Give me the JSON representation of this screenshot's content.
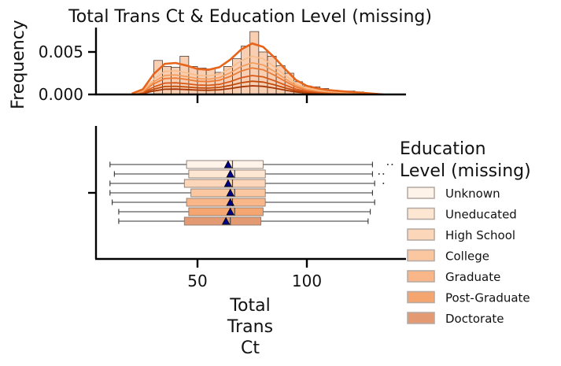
{
  "chart_data": {
    "type": "histogram-kde + boxplot",
    "title": "Total Trans Ct & Education Level (missing)",
    "top_panel": {
      "ylabel": "Frequency",
      "yticks": [
        "0.000",
        "0.005"
      ],
      "ytick_values": [
        0.0,
        0.005
      ],
      "ylim": [
        0,
        0.0075
      ],
      "xlim": [
        0,
        140
      ],
      "bins": [
        {
          "x0": 30,
          "x1": 34,
          "density": 0.004
        },
        {
          "x0": 34,
          "x1": 38,
          "density": 0.0033
        },
        {
          "x0": 38,
          "x1": 42,
          "density": 0.0032
        },
        {
          "x0": 42,
          "x1": 46,
          "density": 0.0045
        },
        {
          "x0": 46,
          "x1": 50,
          "density": 0.0033
        },
        {
          "x0": 50,
          "x1": 54,
          "density": 0.0031
        },
        {
          "x0": 54,
          "x1": 58,
          "density": 0.003
        },
        {
          "x0": 58,
          "x1": 62,
          "density": 0.0026
        },
        {
          "x0": 62,
          "x1": 66,
          "density": 0.0033
        },
        {
          "x0": 66,
          "x1": 70,
          "density": 0.0042
        },
        {
          "x0": 70,
          "x1": 74,
          "density": 0.0057
        },
        {
          "x0": 74,
          "x1": 78,
          "density": 0.0074
        },
        {
          "x0": 78,
          "x1": 82,
          "density": 0.005
        },
        {
          "x0": 82,
          "x1": 86,
          "density": 0.0045
        },
        {
          "x0": 86,
          "x1": 90,
          "density": 0.0034
        },
        {
          "x0": 90,
          "x1": 94,
          "density": 0.0025
        },
        {
          "x0": 94,
          "x1": 98,
          "density": 0.0015
        },
        {
          "x0": 98,
          "x1": 102,
          "density": 0.001
        },
        {
          "x0": 102,
          "x1": 106,
          "density": 0.0009
        },
        {
          "x0": 106,
          "x1": 110,
          "density": 0.0007
        },
        {
          "x0": 110,
          "x1": 114,
          "density": 0.0005
        },
        {
          "x0": 114,
          "x1": 118,
          "density": 0.0004
        },
        {
          "x0": 118,
          "x1": 122,
          "density": 0.0004
        },
        {
          "x0": 122,
          "x1": 126,
          "density": 0.0003
        }
      ],
      "kde_total": [
        [
          20,
          0.0001
        ],
        [
          25,
          0.0006
        ],
        [
          30,
          0.0024
        ],
        [
          35,
          0.0036
        ],
        [
          40,
          0.0037
        ],
        [
          45,
          0.0034
        ],
        [
          50,
          0.003
        ],
        [
          55,
          0.0029
        ],
        [
          60,
          0.0032
        ],
        [
          65,
          0.0041
        ],
        [
          70,
          0.0053
        ],
        [
          75,
          0.006
        ],
        [
          80,
          0.0056
        ],
        [
          85,
          0.0044
        ],
        [
          90,
          0.003
        ],
        [
          95,
          0.0017
        ],
        [
          100,
          0.001
        ],
        [
          105,
          0.0007
        ],
        [
          110,
          0.0005
        ],
        [
          115,
          0.0004
        ],
        [
          120,
          0.0003
        ],
        [
          125,
          0.0002
        ],
        [
          130,
          0.0001
        ],
        [
          135,
          0.0
        ]
      ],
      "kde_group_scales": [
        0.17,
        0.26,
        0.37,
        0.52,
        0.62,
        0.75
      ]
    },
    "bottom_panel": {
      "xlabel": "Total Trans Ct",
      "xticks": [
        "50",
        "100"
      ],
      "xtick_values": [
        50,
        100
      ],
      "xlim": [
        0,
        140
      ],
      "boxes": [
        {
          "name": "Unknown",
          "whisker_low": 10,
          "q1": 45,
          "median": 66,
          "q3": 80,
          "whisker_high": 130,
          "mean": 64,
          "outliers": [
            137,
            139
          ]
        },
        {
          "name": "Uneducated",
          "whisker_low": 12,
          "q1": 46,
          "median": 67,
          "q3": 81,
          "whisker_high": 130,
          "mean": 65,
          "outliers": [
            133,
            135
          ]
        },
        {
          "name": "High School",
          "whisker_low": 10,
          "q1": 44,
          "median": 66,
          "q3": 81,
          "whisker_high": 131,
          "mean": 64,
          "outliers": [
            135
          ]
        },
        {
          "name": "College",
          "whisker_low": 10,
          "q1": 47,
          "median": 67,
          "q3": 81,
          "whisker_high": 130,
          "mean": 65,
          "outliers": []
        },
        {
          "name": "Graduate",
          "whisker_low": 11,
          "q1": 45,
          "median": 66,
          "q3": 81,
          "whisker_high": 131,
          "mean": 65,
          "outliers": []
        },
        {
          "name": "Post-Graduate",
          "whisker_low": 14,
          "q1": 46,
          "median": 67,
          "q3": 80,
          "whisker_high": 129,
          "mean": 65,
          "outliers": []
        },
        {
          "name": "Doctorate",
          "whisker_low": 14,
          "q1": 44,
          "median": 65,
          "q3": 79,
          "whisker_high": 128,
          "mean": 63,
          "outliers": []
        }
      ]
    },
    "legend": {
      "title": "Education Level (missing)",
      "title_lines": [
        "Education",
        "Level (missing)"
      ],
      "placement": "right",
      "entries": [
        "Unknown",
        "Uneducated",
        "High School",
        "College",
        "Graduate",
        "Post-Graduate",
        "Doctorate"
      ]
    },
    "colors": {
      "palette": [
        "#fef3e8",
        "#fde6d2",
        "#fcd6b8",
        "#fbc7a0",
        "#f9b688",
        "#f5a570",
        "#e39a72"
      ],
      "kde_total": "#e8641a",
      "kde_groups": [
        "#a63603",
        "#c24a0b",
        "#d9591a",
        "#ec7a35",
        "#f59d5e",
        "#fabd8c"
      ],
      "mean_marker": "#00008b",
      "hist_fill": "#f6bf98",
      "axis": "#000000"
    }
  }
}
